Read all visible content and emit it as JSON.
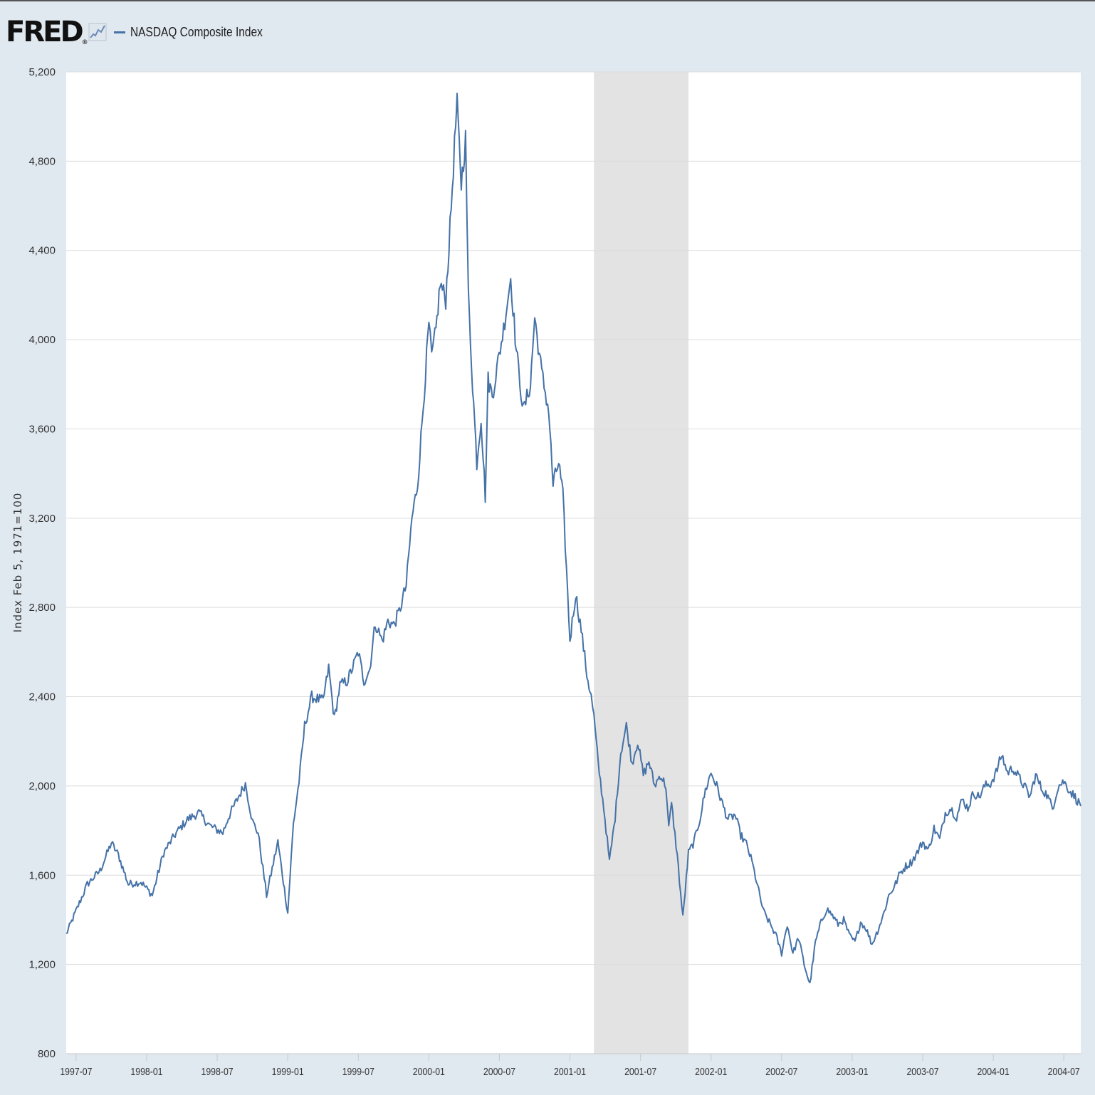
{
  "header": {
    "logo_text": "FRED",
    "logo_mark": "®",
    "logo_icon": "line-chart-icon",
    "series_label": "NASDAQ Composite Index"
  },
  "colors": {
    "line": "#4572a7",
    "recession": "#e3e3e3",
    "grid": "#dcdcdc",
    "plot_bg": "#ffffff",
    "page_bg": "#e1e9f0"
  },
  "chart_data": {
    "type": "line",
    "title": "NASDAQ Composite Index",
    "xlabel": "",
    "ylabel": "Index Feb 5, 1971=100",
    "ylim": [
      800,
      5200
    ],
    "yticks": [
      800,
      1200,
      1600,
      2000,
      2400,
      2800,
      3200,
      3600,
      4000,
      4400,
      4800,
      5200
    ],
    "ytick_labels": [
      "800",
      "1,200",
      "1,600",
      "2,000",
      "2,400",
      "2,800",
      "3,200",
      "3,600",
      "4,000",
      "4,400",
      "4,800",
      "5,200"
    ],
    "xlim": [
      1997.43,
      2004.62
    ],
    "xticks": [
      1997.5,
      1998.0,
      1998.5,
      1999.0,
      1999.5,
      2000.0,
      2000.5,
      2001.0,
      2001.5,
      2002.0,
      2002.5,
      2003.0,
      2003.5,
      2004.0,
      2004.5
    ],
    "xtick_labels": [
      "1997-07",
      "1998-01",
      "1998-07",
      "1999-01",
      "1999-07",
      "2000-01",
      "2000-07",
      "2001-01",
      "2001-07",
      "2002-01",
      "2002-07",
      "2003-01",
      "2003-07",
      "2004-01",
      "2004-07"
    ],
    "grid": true,
    "legend": "top-left",
    "recessions": [
      [
        2001.17,
        2001.84
      ]
    ],
    "series": [
      {
        "name": "NASDAQ Composite Index",
        "x": [
          1997.43,
          1997.5,
          1997.58,
          1997.67,
          1997.75,
          1997.8,
          1997.87,
          1997.96,
          1998.04,
          1998.12,
          1998.21,
          1998.29,
          1998.37,
          1998.45,
          1998.54,
          1998.58,
          1998.65,
          1998.7,
          1998.75,
          1998.79,
          1998.85,
          1998.93,
          1999.0,
          1999.04,
          1999.08,
          1999.12,
          1999.17,
          1999.25,
          1999.29,
          1999.33,
          1999.37,
          1999.42,
          1999.46,
          1999.5,
          1999.54,
          1999.58,
          1999.62,
          1999.67,
          1999.71,
          1999.75,
          1999.79,
          1999.84,
          1999.88,
          1999.92,
          1999.96,
          2000.0,
          2000.02,
          2000.05,
          2000.08,
          2000.12,
          2000.15,
          2000.19,
          2000.2,
          2000.23,
          2000.26,
          2000.28,
          2000.31,
          2000.34,
          2000.37,
          2000.4,
          2000.42,
          2000.45,
          2000.49,
          2000.53,
          2000.58,
          2000.62,
          2000.67,
          2000.72,
          2000.75,
          2000.8,
          2000.85,
          2000.88,
          2000.92,
          2000.95,
          2001.0,
          2001.04,
          2001.08,
          2001.12,
          2001.15,
          2001.17,
          2001.2,
          2001.24,
          2001.28,
          2001.32,
          2001.36,
          2001.4,
          2001.44,
          2001.48,
          2001.52,
          2001.56,
          2001.6,
          2001.64,
          2001.68,
          2001.7,
          2001.72,
          2001.76,
          2001.8,
          2001.84,
          2001.88,
          2001.92,
          2001.96,
          2002.0,
          2002.04,
          2002.08,
          2002.12,
          2002.17,
          2002.21,
          2002.25,
          2002.29,
          2002.33,
          2002.37,
          2002.42,
          2002.46,
          2002.5,
          2002.54,
          2002.58,
          2002.62,
          2002.66,
          2002.7,
          2002.74,
          2002.78,
          2002.82,
          2002.86,
          2002.9,
          2002.94,
          2002.98,
          2003.02,
          2003.06,
          2003.1,
          2003.14,
          2003.18,
          2003.22,
          2003.26,
          2003.3,
          2003.34,
          2003.38,
          2003.42,
          2003.46,
          2003.5,
          2003.54,
          2003.58,
          2003.62,
          2003.66,
          2003.7,
          2003.74,
          2003.78,
          2003.82,
          2003.86,
          2003.9,
          2003.94,
          2003.98,
          2004.02,
          2004.06,
          2004.1,
          2004.14,
          2004.18,
          2004.22,
          2004.26,
          2004.3,
          2004.34,
          2004.38,
          2004.42,
          2004.46,
          2004.5,
          2004.54,
          2004.58,
          2004.62
        ],
        "values": [
          1335,
          1440,
          1560,
          1620,
          1745,
          1690,
          1560,
          1570,
          1510,
          1700,
          1790,
          1850,
          1880,
          1820,
          1790,
          1860,
          1950,
          2010,
          1840,
          1790,
          1510,
          1750,
          1430,
          1830,
          2020,
          2270,
          2400,
          2380,
          2530,
          2300,
          2450,
          2470,
          2530,
          2600,
          2470,
          2520,
          2730,
          2650,
          2740,
          2720,
          2780,
          2900,
          3200,
          3350,
          3700,
          4070,
          3920,
          4040,
          4250,
          4180,
          4500,
          4960,
          5050,
          4700,
          4900,
          4200,
          3800,
          3450,
          3650,
          3300,
          3820,
          3750,
          3900,
          4050,
          4280,
          3950,
          3680,
          3800,
          4100,
          3850,
          3680,
          3350,
          3450,
          3300,
          2650,
          2860,
          2700,
          2500,
          2400,
          2310,
          2100,
          1900,
          1660,
          1860,
          2150,
          2270,
          2100,
          2200,
          2050,
          2110,
          2000,
          2050,
          2000,
          1810,
          1920,
          1690,
          1410,
          1700,
          1750,
          1850,
          1980,
          2060,
          2000,
          1920,
          1850,
          1870,
          1780,
          1740,
          1660,
          1550,
          1440,
          1380,
          1330,
          1250,
          1380,
          1250,
          1320,
          1200,
          1110,
          1300,
          1390,
          1450,
          1420,
          1380,
          1400,
          1330,
          1300,
          1390,
          1360,
          1290,
          1350,
          1420,
          1510,
          1550,
          1610,
          1640,
          1660,
          1700,
          1750,
          1710,
          1810,
          1760,
          1880,
          1900,
          1860,
          1940,
          1900,
          1970,
          1950,
          2000,
          2010,
          2060,
          2140,
          2060,
          2080,
          2040,
          2000,
          1950,
          2050,
          1990,
          1960,
          1900,
          2000,
          2020,
          1980,
          1950,
          1910
        ]
      }
    ]
  }
}
